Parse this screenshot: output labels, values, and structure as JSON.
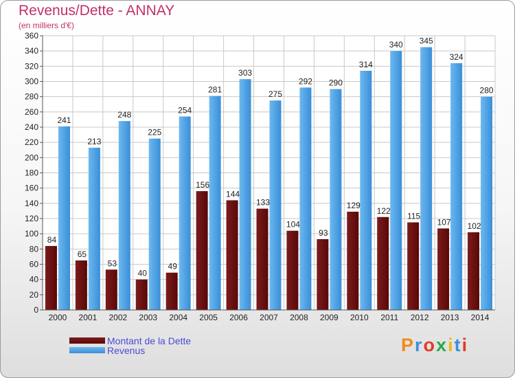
{
  "title": "Revenus/Dette - ANNAY",
  "subtitle": "(en milliers d'€)",
  "legend": [
    {
      "label": "Montant de la Dette",
      "color": "#7a1c1c"
    },
    {
      "label": "Revenus",
      "color": "#4da3e8"
    }
  ],
  "brand": {
    "letters": [
      {
        "char": "P",
        "color": "#f08a1c"
      },
      {
        "char": "r",
        "color": "#3a8fd8"
      },
      {
        "char": "o",
        "color": "#e23a2a"
      },
      {
        "char": "x",
        "color": "#2aa84a"
      },
      {
        "char": "i",
        "color": "#f0b81c"
      },
      {
        "char": "t",
        "color": "#3a8fd8"
      },
      {
        "char": "i",
        "color": "#e23a2a"
      }
    ]
  },
  "colors": {
    "debt_top": "#7a1c1c",
    "debt_bottom": "#5a0808",
    "rev_light": "#6cb8f0",
    "rev_dark": "#3a8fd8",
    "grid": "#c8c8c8",
    "text": "#222222"
  },
  "chart_data": {
    "type": "bar",
    "categories": [
      "2000",
      "2001",
      "2002",
      "2003",
      "2004",
      "2005",
      "2006",
      "2007",
      "2008",
      "2009",
      "2010",
      "2011",
      "2012",
      "2013",
      "2014"
    ],
    "series": [
      {
        "name": "Montant de la Dette",
        "values": [
          84,
          65,
          53,
          40,
          49,
          156,
          144,
          133,
          104,
          93,
          129,
          122,
          115,
          107,
          102
        ]
      },
      {
        "name": "Revenus",
        "values": [
          241,
          213,
          248,
          225,
          254,
          281,
          303,
          275,
          292,
          290,
          314,
          340,
          345,
          324,
          280
        ]
      }
    ],
    "yticks": [
      0,
      20,
      40,
      60,
      80,
      100,
      120,
      140,
      160,
      180,
      200,
      220,
      240,
      260,
      280,
      300,
      320,
      340,
      360
    ],
    "ylim": [
      0,
      360
    ],
    "grid": true,
    "legend_position": "bottom-left"
  }
}
